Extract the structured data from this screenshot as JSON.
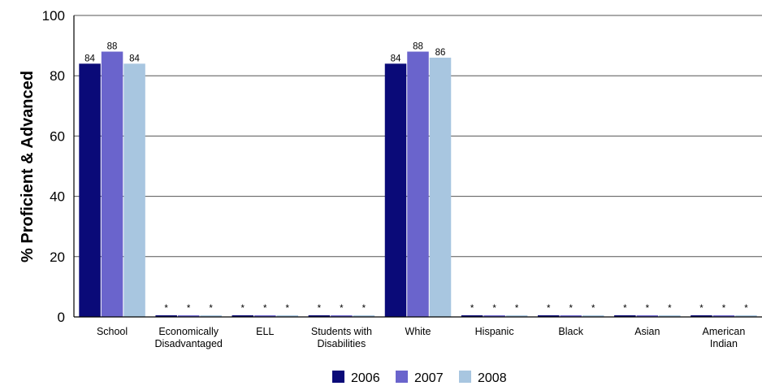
{
  "chart_data": {
    "type": "bar",
    "ylabel": "% Proficient & Advanced",
    "ylim": [
      0,
      100
    ],
    "yticks": [
      "0",
      "20",
      "40",
      "60",
      "80",
      "100"
    ],
    "grid": true,
    "legend_position": "bottom-center",
    "categories": [
      [
        "School"
      ],
      [
        "Economically",
        "Disadvantaged"
      ],
      [
        "ELL"
      ],
      [
        "Students with",
        "Disabilities"
      ],
      [
        "White"
      ],
      [
        "Hispanic"
      ],
      [
        "Black"
      ],
      [
        "Asian"
      ],
      [
        "American",
        "Indian"
      ]
    ],
    "series": [
      {
        "name": "2006",
        "color": "#0a0a78",
        "values": [
          84,
          null,
          null,
          null,
          84,
          null,
          null,
          null,
          null
        ],
        "labels": [
          "84",
          "*",
          "*",
          "*",
          "84",
          "*",
          "*",
          "*",
          "*"
        ]
      },
      {
        "name": "2007",
        "color": "#6a64cc",
        "values": [
          88,
          null,
          null,
          null,
          88,
          null,
          null,
          null,
          null
        ],
        "labels": [
          "88",
          "*",
          "*",
          "*",
          "88",
          "*",
          "*",
          "*",
          "*"
        ]
      },
      {
        "name": "2008",
        "color": "#a8c6e0",
        "values": [
          84,
          null,
          null,
          null,
          86,
          null,
          null,
          null,
          null
        ],
        "labels": [
          "84",
          "*",
          "*",
          "*",
          "86",
          "*",
          "*",
          "*",
          "*"
        ]
      }
    ]
  }
}
